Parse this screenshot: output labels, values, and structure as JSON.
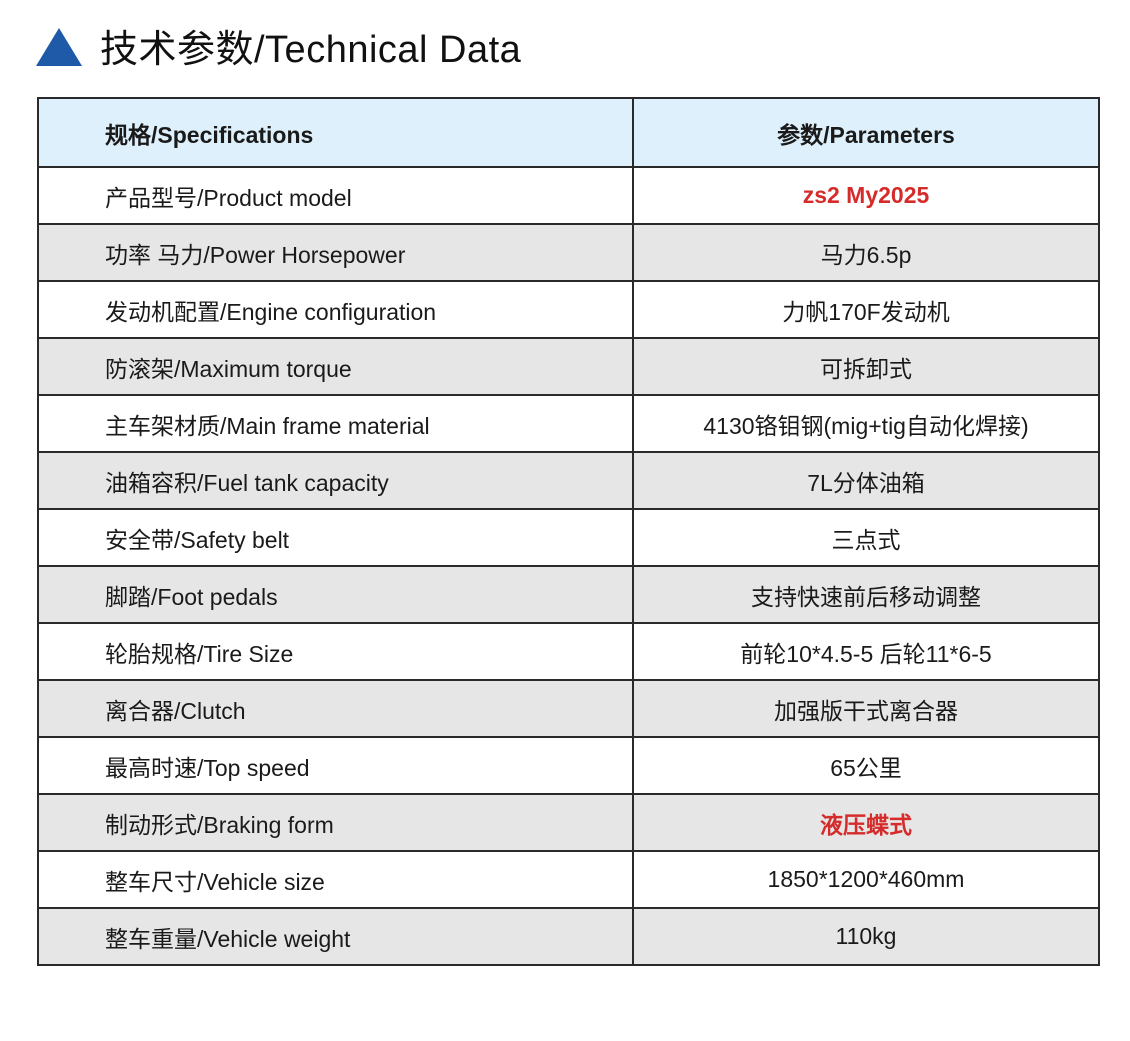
{
  "title": "技术参数/Technical Data",
  "icon": "triangle-icon",
  "colors": {
    "accent": "#1f5aa8",
    "header_bg": "#ddf0fb",
    "alt_row_bg": "#e6e6e6",
    "highlight": "#d62b2b"
  },
  "table": {
    "header": {
      "spec": "规格/Specifications",
      "param": "参数/Parameters"
    },
    "rows": [
      {
        "spec": "产品型号/Product model",
        "value": "zs2 My2025"
      },
      {
        "spec": "功率 马力/Power Horsepower",
        "value": "马力6.5p"
      },
      {
        "spec": "发动机配置/Engine configuration",
        "value": "力帆170F发动机"
      },
      {
        "spec": "防滚架/Maximum torque",
        "value": "可拆卸式"
      },
      {
        "spec": "主车架材质/Main frame material",
        "value": "4130铬钼钢(mig+tig自动化焊接)"
      },
      {
        "spec": "油箱容积/Fuel tank capacity",
        "value": "7L分体油箱"
      },
      {
        "spec": "安全带/Safety belt",
        "value": "三点式"
      },
      {
        "spec": "脚踏/Foot pedals",
        "value": "支持快速前后移动调整"
      },
      {
        "spec": "轮胎规格/Tire Size",
        "value": "前轮10*4.5-5 后轮11*6-5"
      },
      {
        "spec": "离合器/Clutch",
        "value": "加强版干式离合器"
      },
      {
        "spec": "最高时速/Top speed",
        "value": "65公里"
      },
      {
        "spec": "制动形式/Braking form",
        "value": "液压蝶式"
      },
      {
        "spec": "整车尺寸/Vehicle size",
        "value": "1850*1200*460mm"
      },
      {
        "spec": "整车重量/Vehicle weight",
        "value": "110kg"
      }
    ]
  }
}
